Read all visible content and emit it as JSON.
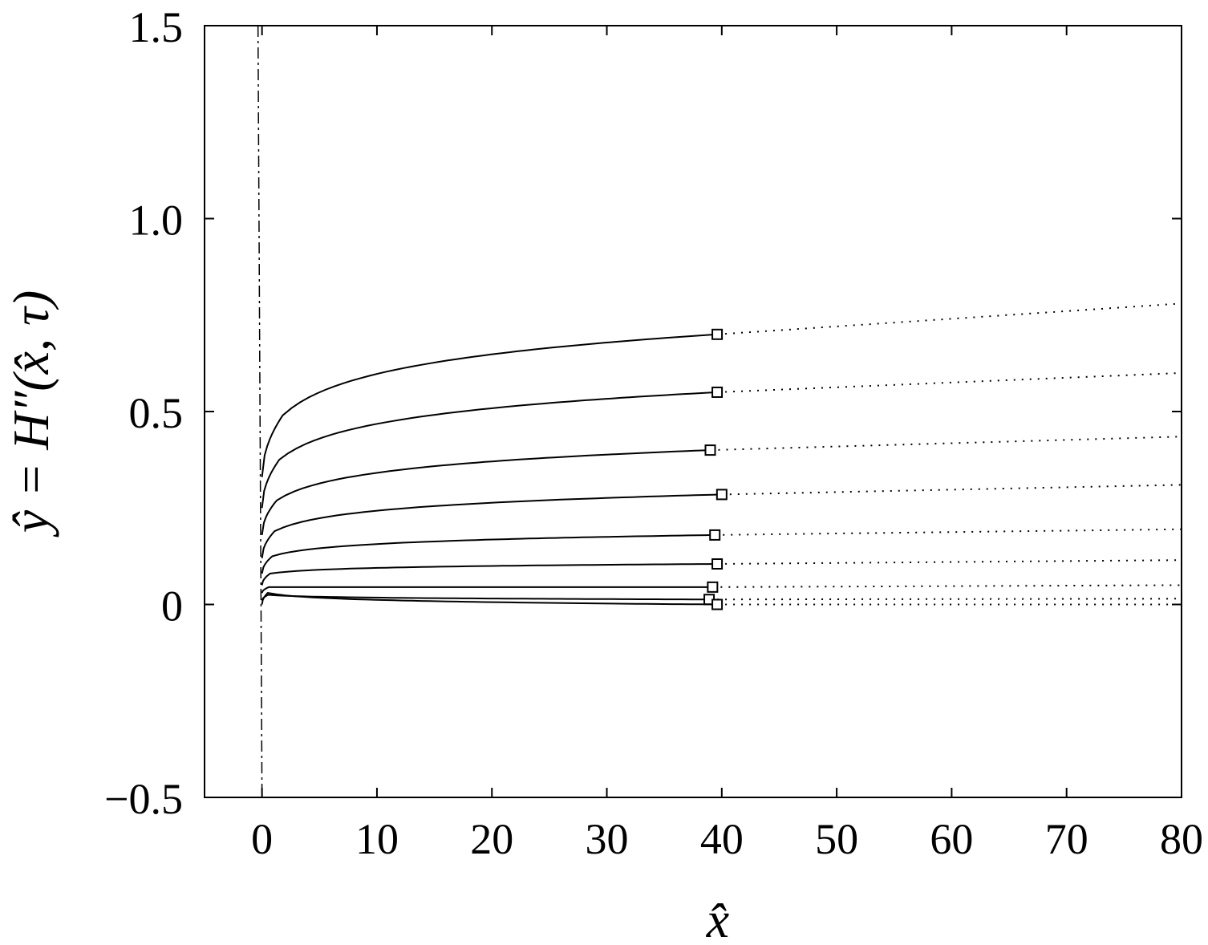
{
  "chart_data": {
    "type": "line",
    "xlabel": "x̂",
    "ylabel": "ŷ = H″(x̂, τ)",
    "xlim": [
      -5,
      80
    ],
    "ylim": [
      -0.5,
      1.5
    ],
    "x_ticks": [
      0,
      10,
      20,
      30,
      40,
      50,
      60,
      70,
      80
    ],
    "y_ticks": [
      -0.5,
      0,
      0.5,
      1.0,
      1.5
    ],
    "x_tick_labels": [
      "0",
      "10",
      "20",
      "30",
      "40",
      "50",
      "60",
      "70",
      "80"
    ],
    "y_tick_labels": [
      "−0.5",
      "0",
      "0.5",
      "1.0",
      "1.5"
    ],
    "grid": false,
    "legend": "none",
    "reference_line": {
      "style": "dash-dot",
      "x": 0
    },
    "series": [
      {
        "x0": 0.0,
        "y0": 0.33,
        "knee_x": 1.8,
        "knee_y": 0.49,
        "marker_x": 39.6,
        "marker_y": 0.7,
        "end_y": 0.78
      },
      {
        "x0": 0.0,
        "y0": 0.25,
        "knee_x": 1.5,
        "knee_y": 0.375,
        "marker_x": 39.6,
        "marker_y": 0.55,
        "end_y": 0.6
      },
      {
        "x0": 0.0,
        "y0": 0.18,
        "knee_x": 1.3,
        "knee_y": 0.27,
        "marker_x": 39.0,
        "marker_y": 0.4,
        "end_y": 0.435
      },
      {
        "x0": 0.0,
        "y0": 0.12,
        "knee_x": 1.1,
        "knee_y": 0.19,
        "marker_x": 40.0,
        "marker_y": 0.285,
        "end_y": 0.31
      },
      {
        "x0": 0.0,
        "y0": 0.08,
        "knee_x": 0.9,
        "knee_y": 0.125,
        "marker_x": 39.4,
        "marker_y": 0.18,
        "end_y": 0.195
      },
      {
        "x0": 0.0,
        "y0": 0.05,
        "knee_x": 0.7,
        "knee_y": 0.08,
        "marker_x": 39.6,
        "marker_y": 0.105,
        "end_y": 0.115
      },
      {
        "x0": 0.0,
        "y0": 0.03,
        "knee_x": 0.6,
        "knee_y": 0.045,
        "marker_x": 39.2,
        "marker_y": 0.045,
        "end_y": 0.05
      },
      {
        "x0": 0.0,
        "y0": 0.01,
        "knee_x": 0.55,
        "knee_y": 0.025,
        "marker_x": 38.9,
        "marker_y": 0.013,
        "end_y": 0.015
      },
      {
        "x0": 0.0,
        "y0": 0.0,
        "knee_x": 0.5,
        "knee_y": 0.03,
        "marker_x": 39.6,
        "marker_y": 0.0,
        "end_y": 0.0
      }
    ]
  }
}
